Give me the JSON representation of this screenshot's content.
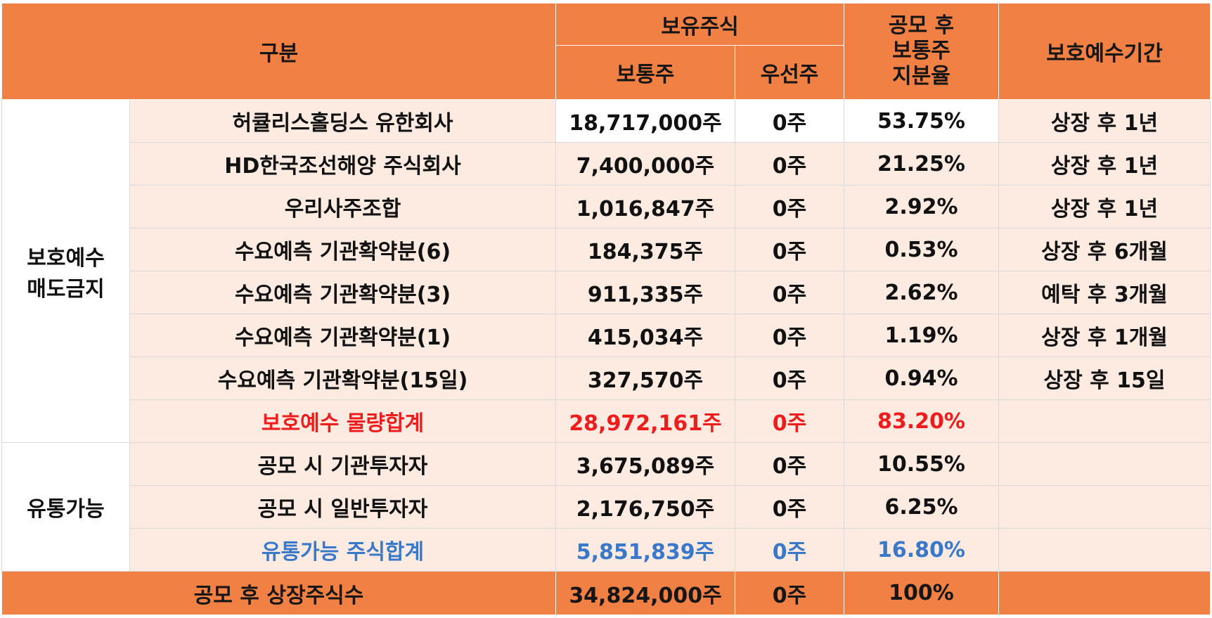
{
  "header": {
    "category": "구분",
    "holding_group": "보유주식",
    "common": "보통주",
    "preferred": "우선주",
    "ratio_lines": [
      "공모 후",
      "보통주",
      "지분율"
    ],
    "lockup_period": "보호예수기간"
  },
  "groups": {
    "lockup": [
      "보호예수",
      "매도금지"
    ],
    "tradable": "유통가능"
  },
  "lockup_rows": [
    {
      "name": "허큘리스홀딩스 유한회사",
      "common": "18,717,000주",
      "preferred": "0주",
      "ratio": "53.75%",
      "period": "상장 후 1년"
    },
    {
      "name": "HD한국조선해양 주식회사",
      "common": "7,400,000주",
      "preferred": "0주",
      "ratio": "21.25%",
      "period": "상장 후 1년"
    },
    {
      "name": "우리사주조합",
      "common": "1,016,847주",
      "preferred": "0주",
      "ratio": "2.92%",
      "period": "상장 후 1년"
    },
    {
      "name": "수요예측 기관확약분(6)",
      "common": "184,375주",
      "preferred": "0주",
      "ratio": "0.53%",
      "period": "상장 후 6개월"
    },
    {
      "name": "수요예측 기관확약분(3)",
      "common": "911,335주",
      "preferred": "0주",
      "ratio": "2.62%",
      "period": "예탁 후 3개월"
    },
    {
      "name": "수요예측 기관확약분(1)",
      "common": "415,034주",
      "preferred": "0주",
      "ratio": "1.19%",
      "period": "상장 후 1개월"
    },
    {
      "name": "수요예측 기관확약분(15일)",
      "common": "327,570주",
      "preferred": "0주",
      "ratio": "0.94%",
      "period": "상장 후 15일"
    }
  ],
  "lockup_total": {
    "name": "보호예수 물량합계",
    "common": "28,972,161주",
    "preferred": "0주",
    "ratio": "83.20%",
    "period": ""
  },
  "tradable_rows": [
    {
      "name": "공모 시 기관투자자",
      "common": "3,675,089주",
      "preferred": "0주",
      "ratio": "10.55%",
      "period": ""
    },
    {
      "name": "공모 시 일반투자자",
      "common": "2,176,750주",
      "preferred": "0주",
      "ratio": "6.25%",
      "period": ""
    }
  ],
  "tradable_total": {
    "name": "유통가능 주식합계",
    "common": "5,851,839주",
    "preferred": "0주",
    "ratio": "16.80%",
    "period": ""
  },
  "footer": {
    "name": "공모 후 상장주식수",
    "common": "34,824,000주",
    "preferred": "0주",
    "ratio": "100%",
    "period": ""
  },
  "colors": {
    "header_bg": "#f08044",
    "row_bg": "#fdebe1",
    "red": "#ee1c1c",
    "blue": "#3a78c9"
  }
}
